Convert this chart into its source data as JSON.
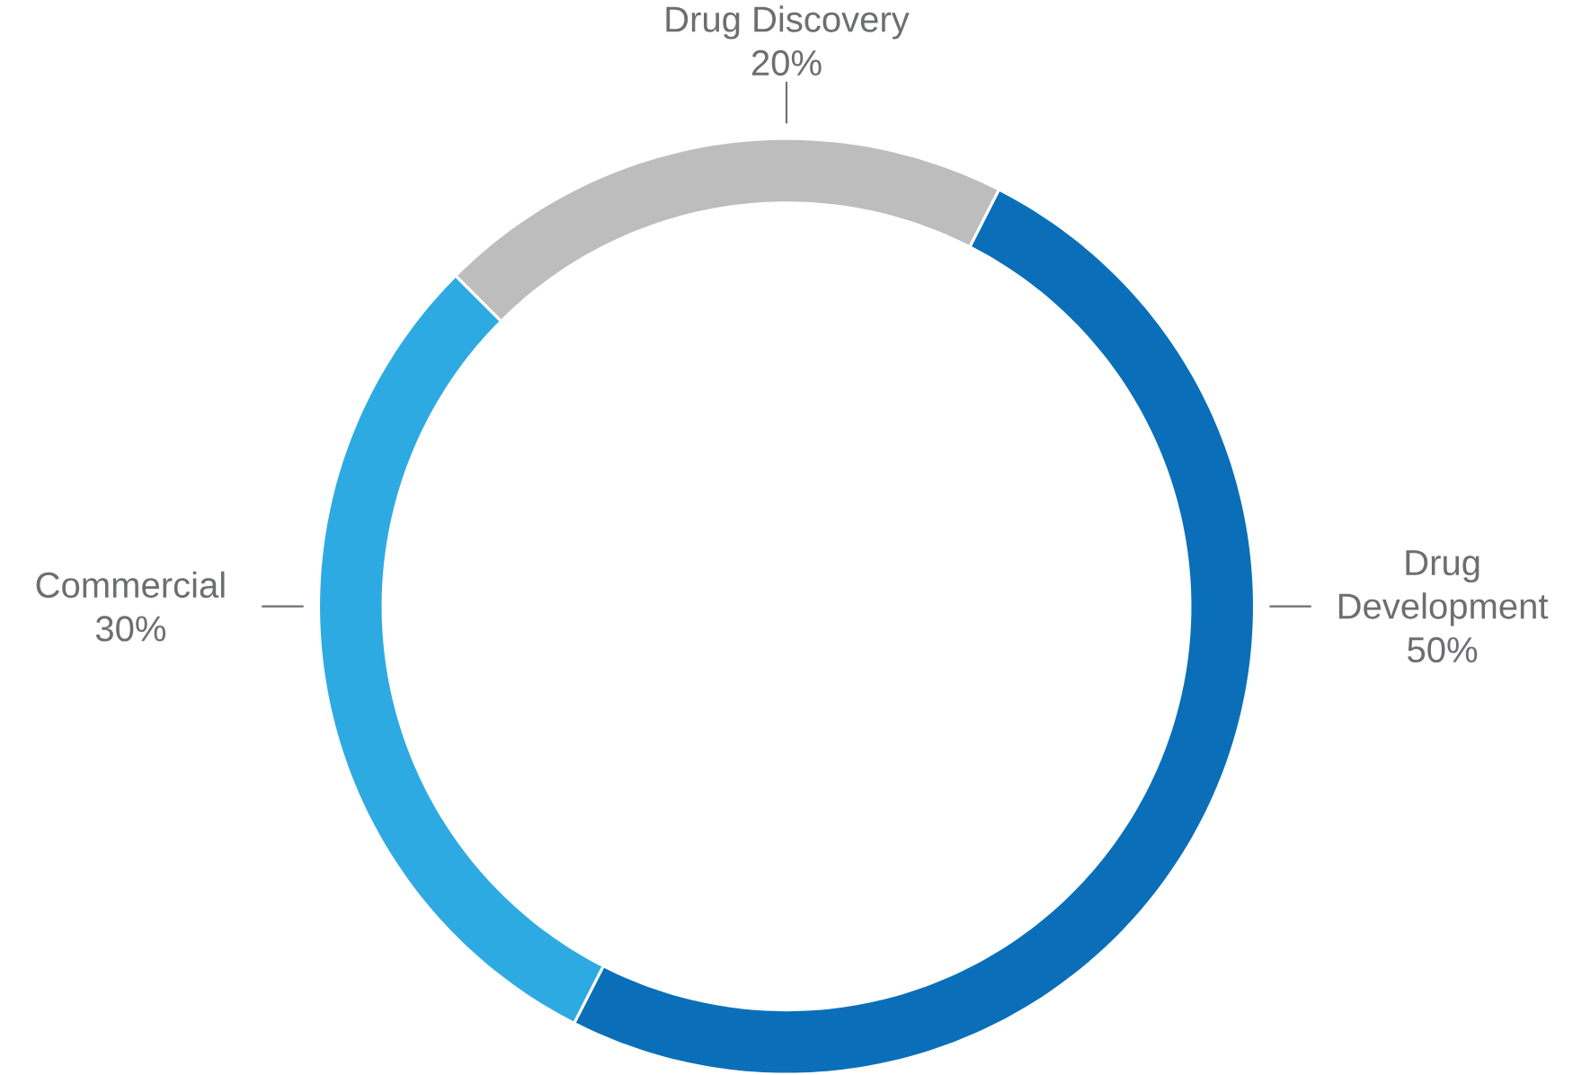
{
  "chart_data": {
    "type": "donut",
    "categories": [
      "Drug Development",
      "Commercial",
      "Drug Discovery"
    ],
    "values": [
      50,
      30,
      20
    ],
    "value_labels": [
      "50%",
      "30%",
      "20%"
    ],
    "colors": [
      "#0a6fb8",
      "#2eaae2",
      "#bcbdbc"
    ]
  }
}
